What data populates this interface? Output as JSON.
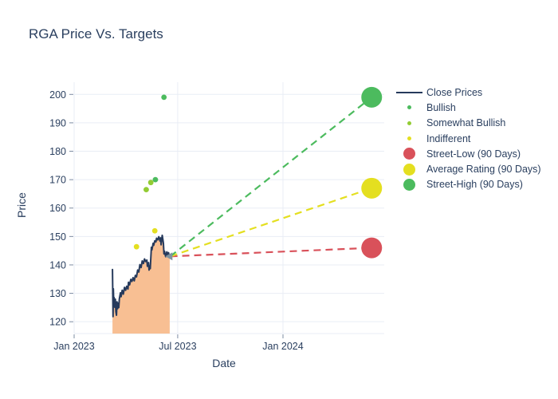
{
  "chart": {
    "title": "RGA Price Vs. Targets",
    "xlabel": "Date",
    "ylabel": "Price"
  },
  "chart_data": {
    "type": "line",
    "title": "RGA Price Vs. Targets",
    "xlabel": "Date",
    "ylabel": "Price",
    "x_unit": "days since 2023-01-01",
    "x_domain": [
      0,
      542
    ],
    "y_domain": [
      115.8,
      204.4
    ],
    "grid": true,
    "legend_position": "right",
    "x_ticks": [
      {
        "day": 0,
        "label": "Jan 2023"
      },
      {
        "day": 181,
        "label": "Jul 2023"
      },
      {
        "day": 365,
        "label": "Jan 2024"
      }
    ],
    "y_ticks": [
      120,
      130,
      140,
      150,
      160,
      170,
      180,
      190,
      200
    ],
    "series": [
      {
        "name": "Close Prices",
        "type": "line",
        "color": "#263a5c",
        "fill": "#f8bf93",
        "points": [
          [
            67,
            138.4
          ],
          [
            67.5,
            129.0
          ],
          [
            68,
            121.8
          ],
          [
            68.6,
            131.6
          ],
          [
            69.3,
            126.0
          ],
          [
            70,
            128.5
          ],
          [
            71,
            125.1
          ],
          [
            72,
            127.9
          ],
          [
            73,
            123.5
          ],
          [
            74,
            122.3
          ],
          [
            75,
            127.0
          ],
          [
            76,
            124.6
          ],
          [
            77,
            126.5
          ],
          [
            78,
            125.0
          ],
          [
            79,
            128.0
          ],
          [
            81,
            130.2
          ],
          [
            82,
            128.8
          ],
          [
            84,
            131.1
          ],
          [
            86,
            129.7
          ],
          [
            88,
            132.1
          ],
          [
            90,
            131.1
          ],
          [
            92,
            132.5
          ],
          [
            94,
            131.5
          ],
          [
            95,
            133.9
          ],
          [
            97,
            133.0
          ],
          [
            99,
            134.9
          ],
          [
            101,
            134.2
          ],
          [
            103,
            135.5
          ],
          [
            105,
            134.4
          ],
          [
            107,
            136.3
          ],
          [
            109,
            135.8
          ],
          [
            111,
            138.2
          ],
          [
            113,
            137.5
          ],
          [
            115,
            140.1
          ],
          [
            117,
            139.1
          ],
          [
            119,
            141.4
          ],
          [
            121,
            140.5
          ],
          [
            123,
            142.1
          ],
          [
            125,
            141.2
          ],
          [
            127,
            141.7
          ],
          [
            128,
            139.5
          ],
          [
            130,
            140.8
          ],
          [
            131,
            138.2
          ],
          [
            132,
            139.6
          ],
          [
            133,
            138.7
          ],
          [
            135,
            146.2
          ],
          [
            136,
            145.3
          ],
          [
            138,
            147.6
          ],
          [
            139,
            146.9
          ],
          [
            141,
            148.5
          ],
          [
            143,
            148.1
          ],
          [
            144,
            149.4
          ],
          [
            146,
            148.8
          ],
          [
            148,
            149.9
          ],
          [
            150,
            148.4
          ],
          [
            151,
            149.5
          ],
          [
            152,
            147.1
          ],
          [
            154,
            150.4
          ],
          [
            155,
            149.0
          ],
          [
            156,
            147.6
          ],
          [
            157,
            143.9
          ],
          [
            158,
            144.8
          ],
          [
            160,
            142.9
          ],
          [
            162,
            144.6
          ],
          [
            164,
            143.1
          ],
          [
            165,
            144.3
          ],
          [
            166,
            143.3
          ],
          [
            167,
            142.9
          ]
        ]
      },
      {
        "name": "Bullish",
        "type": "scatter",
        "color": "#4cbb5e",
        "points": [
          [
            157,
            199
          ],
          [
            142,
            170
          ]
        ]
      },
      {
        "name": "Somewhat Bullish",
        "type": "scatter",
        "color": "#92cc33",
        "points": [
          [
            134,
            169
          ],
          [
            126,
            166.5
          ]
        ]
      },
      {
        "name": "Indifferent",
        "type": "scatter",
        "color": "#e4df20",
        "points": [
          [
            109,
            146.4
          ],
          [
            141,
            152
          ]
        ]
      },
      {
        "name": "Street-Low (90 Days)",
        "type": "target",
        "color": "#d9515a",
        "from": [
          168,
          143
        ],
        "to": [
          520,
          146
        ]
      },
      {
        "name": "Average Rating (90 Days)",
        "type": "target",
        "color": "#e4df20",
        "from": [
          168,
          143
        ],
        "to": [
          520,
          167
        ]
      },
      {
        "name": "Street-High (90 Days)",
        "type": "target",
        "color": "#4cbb5e",
        "from": [
          168,
          143
        ],
        "to": [
          520,
          199
        ]
      }
    ],
    "last_price_marker": {
      "day": 169,
      "price": 143,
      "shape": "triangle-left",
      "color": "#7e939f"
    },
    "legend": [
      {
        "label": "Close Prices",
        "swatch": "line",
        "color": "#263a5c"
      },
      {
        "label": "Bullish",
        "swatch": "dot",
        "color": "#4cbb5e"
      },
      {
        "label": "Somewhat Bullish",
        "swatch": "dot",
        "color": "#92cc33"
      },
      {
        "label": "Indifferent",
        "swatch": "dot",
        "color": "#e4df20"
      },
      {
        "label": "Street-Low (90 Days)",
        "swatch": "circle",
        "color": "#d9515a"
      },
      {
        "label": "Average Rating (90 Days)",
        "swatch": "circle",
        "color": "#e4df20"
      },
      {
        "label": "Street-High (90 Days)",
        "swatch": "circle",
        "color": "#4cbb5e"
      }
    ],
    "colors": {
      "text": "#2a3f5f",
      "grid": "#e9edf5",
      "tick": "#7d8ca3",
      "close_line": "#263a5c",
      "close_fill": "#f8bf93"
    }
  }
}
